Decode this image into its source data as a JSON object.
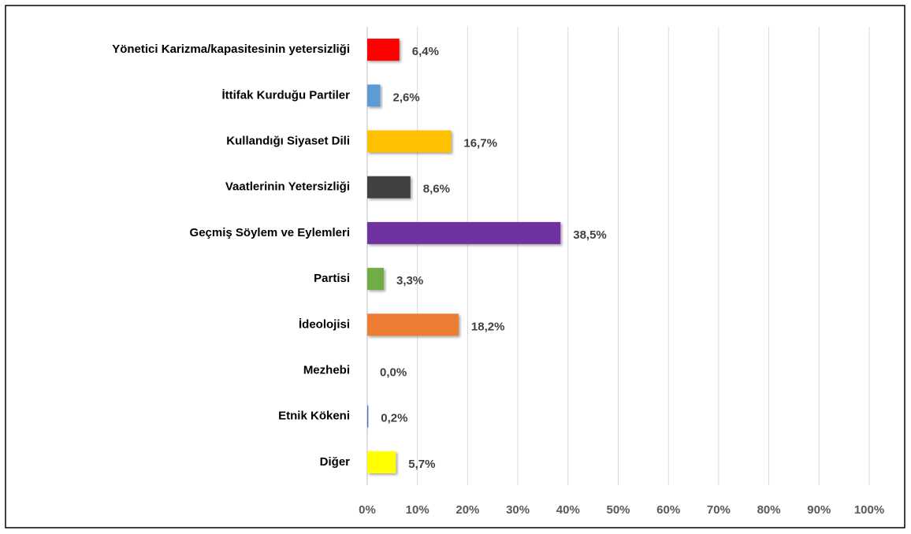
{
  "chart_data": {
    "type": "hbar",
    "categories": [
      "Yönetici Karizma/kapasitesinin yetersizliği",
      "İttifak Kurduğu Partiler",
      "Kullandığı Siyaset Dili",
      "Vaatlerinin Yetersizliği",
      "Geçmiş Söylem ve Eylemleri",
      "Partisi",
      "İdeolojisi",
      "Mezhebi",
      "Etnik Kökeni",
      "Diğer"
    ],
    "values": [
      6.4,
      2.6,
      16.7,
      8.6,
      38.5,
      3.3,
      18.2,
      0.0,
      0.2,
      5.7
    ],
    "value_labels": [
      "6,4%",
      "2,6%",
      "16,7%",
      "8,6%",
      "38,5%",
      "3,3%",
      "18,2%",
      "0,0%",
      "0,2%",
      "5,7%"
    ],
    "colors": [
      "#ff0000",
      "#5b9bd5",
      "#ffc000",
      "#404040",
      "#7030a0",
      "#70ad47",
      "#ed7d31",
      "#a5a5a5",
      "#4472c4",
      "#ffff00"
    ],
    "xlim": [
      0,
      100
    ],
    "xticks": [
      {
        "value": 0,
        "label": "0%"
      },
      {
        "value": 10,
        "label": "10%"
      },
      {
        "value": 20,
        "label": "20%"
      },
      {
        "value": 30,
        "label": "30%"
      },
      {
        "value": 40,
        "label": "40%"
      },
      {
        "value": 50,
        "label": "50%"
      },
      {
        "value": 60,
        "label": "60%"
      },
      {
        "value": 70,
        "label": "70%"
      },
      {
        "value": 80,
        "label": "80%"
      },
      {
        "value": 90,
        "label": "90%"
      },
      {
        "value": 100,
        "label": "100%"
      }
    ],
    "grid": true
  }
}
